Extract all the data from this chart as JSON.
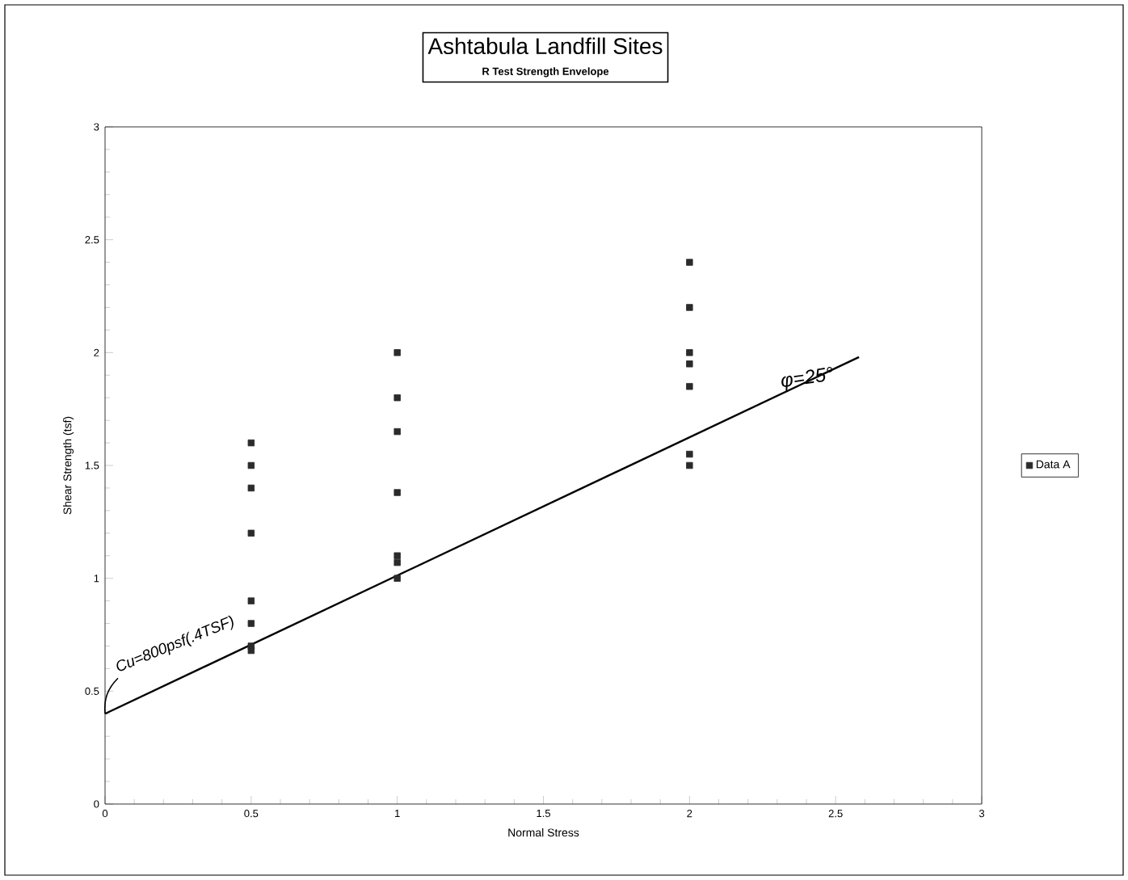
{
  "chart_data": {
    "type": "scatter",
    "title": "Ashtabula Landfill Sites",
    "subtitle": "R Test Strength Envelope",
    "xlabel": "Normal Stress",
    "ylabel": "Shear Strength (tsf)",
    "series": [
      {
        "name": "Data A",
        "color": "#2b2b2b",
        "marker": "square",
        "x": [
          0.5,
          0.5,
          0.5,
          0.5,
          0.5,
          0.5,
          0.5,
          0.5,
          1,
          1,
          1,
          1,
          1,
          1,
          1,
          2,
          2,
          2,
          2,
          2,
          2,
          2
        ],
        "values": [
          1.6,
          1.5,
          1.4,
          1.2,
          0.9,
          0.8,
          0.7,
          0.68,
          2.0,
          1.8,
          1.65,
          1.38,
          1.1,
          1.07,
          1.0,
          2.4,
          2.2,
          2.0,
          1.95,
          1.85,
          1.55,
          1.5
        ]
      },
      {
        "type": "line",
        "color": "#000000",
        "x": [
          0,
          2.58
        ],
        "values": [
          0.4,
          1.98
        ]
      }
    ],
    "xlim": [
      0,
      3
    ],
    "xticks": [
      0,
      0.5,
      1,
      1.5,
      2,
      2.5,
      3
    ],
    "ylim": [
      0,
      3
    ],
    "yticks": [
      0,
      0.5,
      1,
      1.5,
      2,
      2.5,
      3
    ],
    "grid": false,
    "legend": "right",
    "annotations": [
      {
        "text": "Cu=800psf(.4TSF)",
        "x": 0,
        "y": 0.4
      },
      {
        "text": "φ=25°",
        "x": 2.3,
        "y": 1.8
      }
    ]
  }
}
